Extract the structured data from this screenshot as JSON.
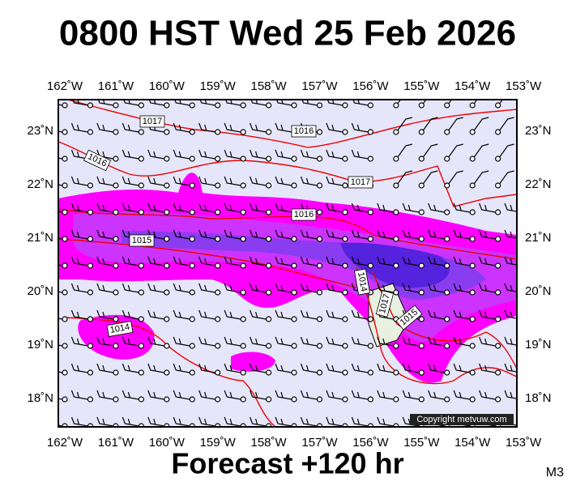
{
  "header": {
    "title": "0800 HST Wed 25 Feb 2026"
  },
  "map": {
    "lon_labels": [
      "162˚W",
      "161˚W",
      "160˚W",
      "159˚W",
      "158˚W",
      "157˚W",
      "156˚W",
      "155˚W",
      "154˚W",
      "153˚W"
    ],
    "lat_labels": [
      "23˚N",
      "22˚N",
      "21˚N",
      "20˚N",
      "19˚N",
      "18˚N"
    ],
    "isobar_labels": [
      "1017",
      "1016",
      "1016",
      "1017",
      "1016",
      "1015",
      "1014",
      "1014",
      "1017",
      "1015"
    ],
    "copyright": "Copyright metvuw.com"
  },
  "footer": {
    "forecast": "Forecast +120 hr",
    "model": "M3"
  }
}
